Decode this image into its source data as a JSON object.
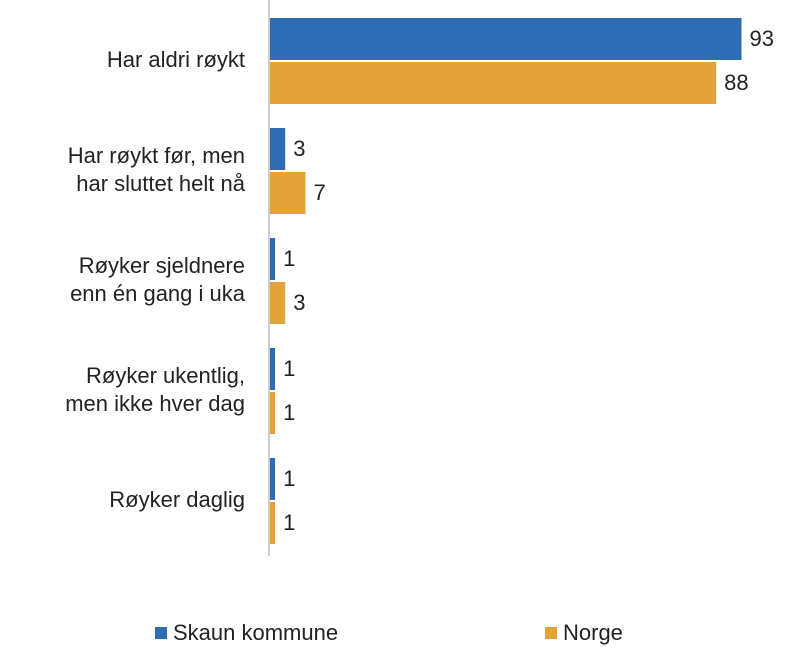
{
  "chart_data": {
    "type": "bar",
    "orientation": "horizontal",
    "categories": [
      "Har aldri røykt",
      "Har røykt før, men\nhar sluttet helt nå",
      "Røyker sjeldnere\nenn én gang i uka",
      "Røyker ukentlig,\nmen ikke hver dag",
      "Røyker daglig"
    ],
    "series": [
      {
        "name": "Skaun kommune",
        "color": "#2e6db4",
        "values": [
          93,
          3,
          1,
          1,
          1
        ]
      },
      {
        "name": "Norge",
        "color": "#e3a23a",
        "values": [
          88,
          7,
          3,
          1,
          1
        ]
      }
    ],
    "xlim": [
      0,
      100
    ],
    "legend": "bottom"
  }
}
